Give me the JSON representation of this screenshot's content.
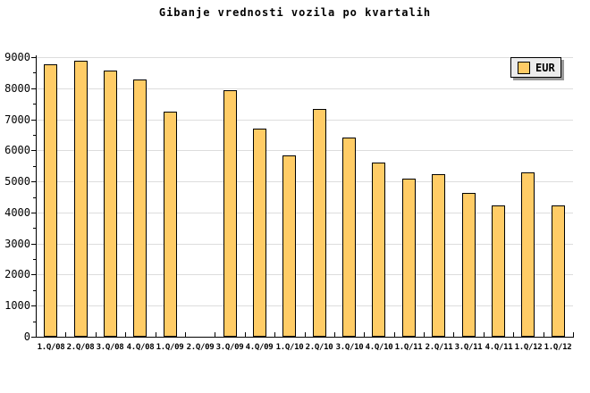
{
  "legend": {
    "label": "EUR",
    "swatch_color": "#FFCC66"
  },
  "colors": {
    "bar_fill": "#FFCC66",
    "bar_border": "#000000",
    "gridline": "#DDDDDD",
    "axis": "#000000",
    "legend_background": "#ECECEC",
    "legend_shadow": "#999999",
    "background": "#FFFFFF",
    "text": "#000000"
  },
  "chart_data": {
    "type": "bar",
    "title": "Gibanje vrednosti vozila po kvartalih",
    "categories": [
      "1.Q/08",
      "2.Q/08",
      "3.Q/08",
      "4.Q/08",
      "1.Q/09",
      "2.Q/09",
      "3.Q/09",
      "4.Q/09",
      "1.Q/10",
      "2.Q/10",
      "3.Q/10",
      "4.Q/10",
      "1.Q/11",
      "2.Q/11",
      "3.Q/11",
      "4.Q/11",
      "1.Q/12",
      "1.Q/12"
    ],
    "series": [
      {
        "name": "EUR",
        "values": [
          8780,
          8880,
          8580,
          8270,
          7250,
          0,
          7930,
          6700,
          5830,
          7330,
          6410,
          5610,
          5090,
          5240,
          4630,
          4220,
          5280,
          4220
        ]
      }
    ],
    "xlabel": "",
    "ylabel": "",
    "ylim": [
      0,
      9000
    ],
    "yticks": [
      0,
      1000,
      2000,
      3000,
      4000,
      5000,
      6000,
      7000,
      8000,
      9000
    ],
    "ytick_minor_step": 500,
    "grid": true,
    "legend_position": "top-right"
  }
}
